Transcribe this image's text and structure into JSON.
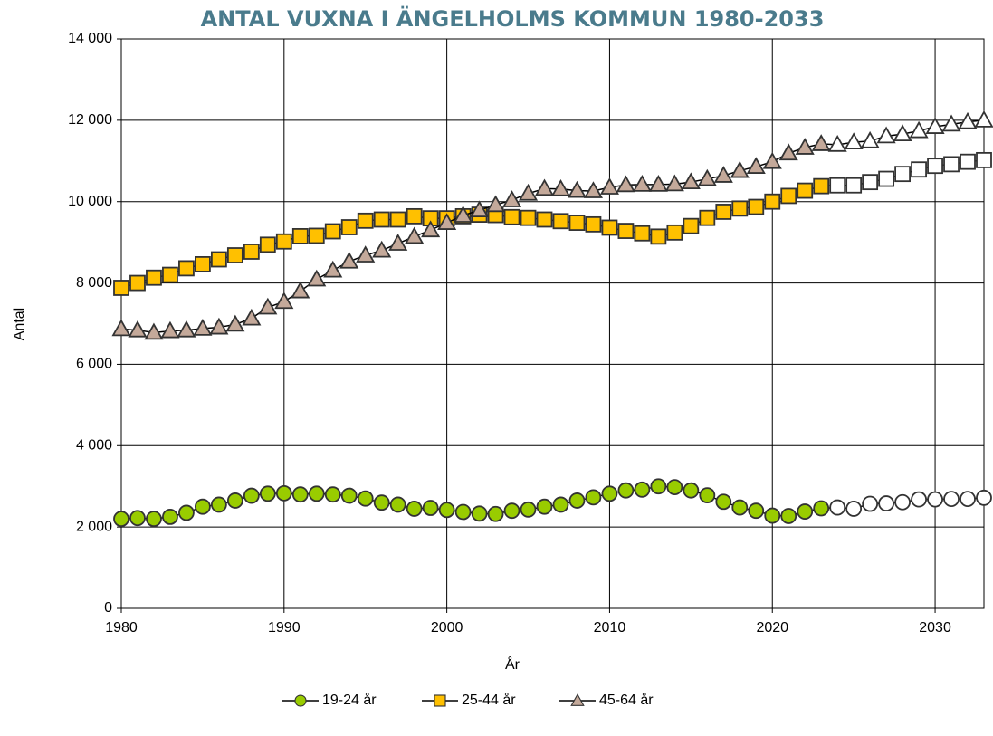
{
  "chart_data": {
    "type": "line",
    "title": "ANTAL VUXNA I ÄNGELHOLMS KOMMUN 1980-2033",
    "x_label": "År",
    "y_label": "Antal",
    "x": [
      1980,
      1981,
      1982,
      1983,
      1984,
      1985,
      1986,
      1987,
      1988,
      1989,
      1990,
      1991,
      1992,
      1993,
      1994,
      1995,
      1996,
      1997,
      1998,
      1999,
      2000,
      2001,
      2002,
      2003,
      2004,
      2005,
      2006,
      2007,
      2008,
      2009,
      2010,
      2011,
      2012,
      2013,
      2014,
      2015,
      2016,
      2017,
      2018,
      2019,
      2020,
      2021,
      2022,
      2023,
      2024,
      2025,
      2026,
      2027,
      2028,
      2029,
      2030,
      2031,
      2032,
      2033
    ],
    "series": [
      {
        "name": "19-24 år",
        "color": "#99cc00",
        "marker": "circle",
        "values": [
          2200,
          2220,
          2200,
          2250,
          2350,
          2500,
          2550,
          2650,
          2770,
          2820,
          2830,
          2800,
          2820,
          2800,
          2770,
          2700,
          2600,
          2550,
          2450,
          2470,
          2420,
          2370,
          2330,
          2320,
          2400,
          2430,
          2500,
          2550,
          2650,
          2730,
          2820,
          2900,
          2920,
          3000,
          2980,
          2900,
          2780,
          2620,
          2480,
          2400,
          2280,
          2270,
          2380,
          2460,
          2480,
          2450,
          2570,
          2580,
          2610,
          2680,
          2680,
          2690,
          2690,
          2720
        ]
      },
      {
        "name": "25-44 år",
        "color": "#ffc000",
        "marker": "square",
        "values": [
          7880,
          8000,
          8130,
          8200,
          8360,
          8460,
          8580,
          8680,
          8770,
          8940,
          9020,
          9150,
          9160,
          9270,
          9370,
          9530,
          9560,
          9560,
          9640,
          9590,
          9590,
          9640,
          9680,
          9670,
          9620,
          9600,
          9560,
          9520,
          9480,
          9440,
          9360,
          9280,
          9220,
          9140,
          9240,
          9400,
          9600,
          9750,
          9830,
          9870,
          10000,
          10140,
          10270,
          10380,
          10400,
          10400,
          10480,
          10560,
          10680,
          10790,
          10880,
          10920,
          10980,
          11020
        ]
      },
      {
        "name": "45-64 år",
        "color": "#c4a99a",
        "marker": "triangle",
        "values": [
          6870,
          6840,
          6780,
          6820,
          6840,
          6880,
          6910,
          6980,
          7130,
          7400,
          7540,
          7800,
          8090,
          8310,
          8530,
          8680,
          8800,
          8970,
          9140,
          9300,
          9480,
          9660,
          9790,
          9920,
          10040,
          10200,
          10320,
          10310,
          10270,
          10260,
          10350,
          10410,
          10420,
          10420,
          10430,
          10480,
          10560,
          10640,
          10760,
          10860,
          10980,
          11190,
          11330,
          11420,
          11400,
          11460,
          11490,
          11610,
          11660,
          11740,
          11840,
          11900,
          11960,
          12000
        ]
      }
    ],
    "forecast_from": 2024,
    "forecast_marker_color": "#ffffff",
    "xlim": [
      1980,
      2033
    ],
    "xticks": [
      1980,
      1990,
      2000,
      2010,
      2020,
      2030
    ],
    "ylim": [
      0,
      14000
    ],
    "yticks": [
      0,
      {
        "value": 2000,
        "label": "2 000"
      },
      {
        "value": 4000,
        "label": "4 000"
      },
      {
        "value": 6000,
        "label": "6 000"
      },
      {
        "value": 8000,
        "label": "8 000"
      },
      {
        "value": 10000,
        "label": "10 000"
      },
      {
        "value": 12000,
        "label": "12 000"
      },
      {
        "value": 14000,
        "label": "14 000"
      }
    ],
    "grid": true,
    "legend": "bottom"
  }
}
